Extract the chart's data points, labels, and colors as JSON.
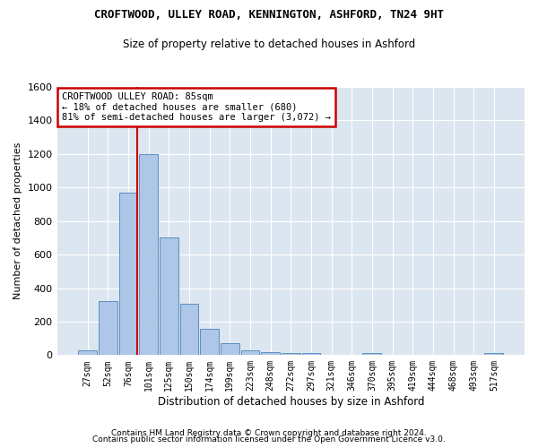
{
  "title": "CROFTWOOD, ULLEY ROAD, KENNINGTON, ASHFORD, TN24 9HT",
  "subtitle": "Size of property relative to detached houses in Ashford",
  "xlabel": "Distribution of detached houses by size in Ashford",
  "ylabel": "Number of detached properties",
  "footer1": "Contains HM Land Registry data © Crown copyright and database right 2024.",
  "footer2": "Contains public sector information licensed under the Open Government Licence v3.0.",
  "bin_labels": [
    "27sqm",
    "52sqm",
    "76sqm",
    "101sqm",
    "125sqm",
    "150sqm",
    "174sqm",
    "199sqm",
    "223sqm",
    "248sqm",
    "272sqm",
    "297sqm",
    "321sqm",
    "346sqm",
    "370sqm",
    "395sqm",
    "419sqm",
    "444sqm",
    "468sqm",
    "493sqm",
    "517sqm"
  ],
  "bar_values": [
    30,
    320,
    970,
    1200,
    700,
    305,
    155,
    70,
    30,
    20,
    15,
    15,
    0,
    0,
    10,
    0,
    0,
    0,
    0,
    0,
    10
  ],
  "bar_color": "#aec6e8",
  "bar_edge_color": "#5a8fc0",
  "highlight_index": 2,
  "highlight_color": "#cc0000",
  "annotation_text": "CROFTWOOD ULLEY ROAD: 85sqm\n← 18% of detached houses are smaller (680)\n81% of semi-detached houses are larger (3,072) →",
  "annotation_box_color": "#cc0000",
  "ylim": [
    0,
    1600
  ],
  "yticks": [
    0,
    200,
    400,
    600,
    800,
    1000,
    1200,
    1400,
    1600
  ],
  "fig_bg_color": "#ffffff",
  "plot_bg_color": "#dce6f0",
  "grid_color": "#ffffff",
  "title_fontsize": 9,
  "subtitle_fontsize": 8.5
}
